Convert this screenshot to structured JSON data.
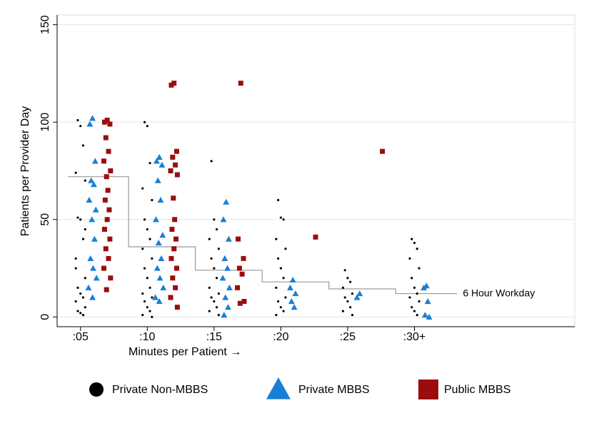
{
  "chart_data": {
    "type": "scatter",
    "xlabel": "Minutes per Patient →",
    "ylabel": "Patients per Provider Day",
    "xlim": [
      0.65,
      8.4
    ],
    "ylim": [
      -5,
      155
    ],
    "xticks": [
      {
        "value": 1,
        "label": ":05"
      },
      {
        "value": 2,
        "label": ":10"
      },
      {
        "value": 3,
        "label": ":15"
      },
      {
        "value": 4,
        "label": ":20"
      },
      {
        "value": 5,
        "label": ":25"
      },
      {
        "value": 6,
        "label": ":30+"
      }
    ],
    "yticks": [
      0,
      50,
      100,
      150
    ],
    "grid": true,
    "series": [
      {
        "name": "Private Non-MBBS",
        "color": "#000000",
        "marker": "circle",
        "x": [
          0.96,
          1.0,
          1.04,
          0.93,
          1.07,
          0.96,
          1.0,
          1.04,
          0.93,
          1.07,
          0.96,
          1.0,
          1.04,
          0.93,
          1.07,
          0.96,
          1.0,
          1.04,
          0.93,
          1.07,
          1.96,
          2.0,
          2.04,
          1.93,
          2.07,
          1.96,
          2.0,
          2.04,
          1.93,
          2.07,
          1.96,
          2.0,
          2.04,
          1.93,
          2.07,
          1.96,
          2.0,
          2.04,
          1.93,
          2.07,
          2.96,
          3.0,
          3.04,
          2.93,
          3.07,
          2.96,
          3.0,
          3.04,
          2.93,
          3.07,
          2.96,
          3.0,
          3.04,
          2.93,
          3.07,
          3.96,
          4.0,
          4.04,
          3.93,
          4.07,
          3.96,
          4.0,
          4.04,
          3.93,
          4.07,
          3.96,
          4.0,
          4.04,
          3.93,
          4.96,
          5.0,
          5.04,
          4.93,
          5.07,
          4.96,
          5.0,
          5.04,
          4.93,
          5.07,
          5.96,
          6.0,
          6.04,
          5.93,
          6.07,
          5.96,
          6.0,
          6.04,
          5.93,
          6.07,
          5.96,
          6.0,
          6.04
        ],
        "values": [
          101,
          98,
          88,
          74,
          70,
          51,
          50,
          40,
          30,
          20,
          15,
          12,
          10,
          8,
          5,
          3,
          2,
          1,
          25,
          45,
          100,
          98,
          79,
          66,
          60,
          50,
          45,
          40,
          35,
          30,
          25,
          20,
          15,
          12,
          10,
          8,
          5,
          3,
          1,
          0,
          80,
          50,
          45,
          40,
          35,
          30,
          25,
          20,
          15,
          12,
          10,
          8,
          5,
          3,
          1,
          60,
          51,
          50,
          40,
          35,
          30,
          25,
          20,
          15,
          10,
          8,
          5,
          3,
          1,
          24,
          20,
          18,
          15,
          12,
          10,
          8,
          5,
          3,
          1,
          40,
          38,
          35,
          30,
          25,
          20,
          15,
          12,
          10,
          8,
          5,
          3,
          1
        ]
      },
      {
        "name": "Private MBBS",
        "color": "#1a7fd4",
        "marker": "triangle",
        "x": [
          1.18,
          1.14,
          1.22,
          1.16,
          1.2,
          1.13,
          1.23,
          1.17,
          1.21,
          1.15,
          1.19,
          1.24,
          1.12,
          1.18,
          2.18,
          2.14,
          2.22,
          2.16,
          2.2,
          2.13,
          2.23,
          2.17,
          2.21,
          2.15,
          2.19,
          2.24,
          2.12,
          2.18,
          3.18,
          3.14,
          3.22,
          3.16,
          3.2,
          3.13,
          3.23,
          3.17,
          3.21,
          3.15,
          4.18,
          4.14,
          4.22,
          4.16,
          4.2,
          5.18,
          5.14,
          6.18,
          6.14,
          6.2,
          6.16,
          6.22
        ],
        "values": [
          102,
          99,
          80,
          70,
          68,
          60,
          55,
          50,
          40,
          30,
          25,
          20,
          15,
          10,
          82,
          80,
          78,
          70,
          60,
          50,
          42,
          38,
          30,
          25,
          20,
          15,
          10,
          8,
          59,
          50,
          40,
          30,
          25,
          20,
          15,
          10,
          5,
          1,
          19,
          15,
          12,
          8,
          5,
          12,
          10,
          16,
          15,
          8,
          1,
          0
        ]
      },
      {
        "name": "Public MBBS",
        "color": "#9b0d0d",
        "marker": "square",
        "x": [
          1.4,
          1.36,
          1.44,
          1.38,
          1.42,
          1.35,
          1.45,
          1.39,
          1.41,
          1.37,
          1.43,
          1.4,
          1.36,
          1.44,
          1.38,
          1.42,
          1.35,
          1.45,
          1.39,
          2.4,
          2.36,
          2.44,
          2.38,
          2.42,
          2.35,
          2.45,
          2.39,
          2.41,
          2.37,
          2.43,
          2.4,
          2.36,
          2.44,
          2.38,
          2.42,
          2.35,
          2.45,
          3.4,
          3.36,
          3.44,
          3.38,
          3.42,
          3.35,
          3.45,
          3.39,
          4.52,
          5.52
        ],
        "values": [
          101,
          100,
          99,
          92,
          85,
          80,
          75,
          72,
          65,
          60,
          55,
          50,
          45,
          40,
          35,
          30,
          25,
          20,
          14,
          120,
          119,
          85,
          82,
          78,
          75,
          73,
          61,
          50,
          45,
          40,
          35,
          30,
          25,
          20,
          15,
          10,
          5,
          120,
          40,
          30,
          25,
          22,
          15,
          8,
          7,
          41,
          85
        ]
      }
    ],
    "reference_line": {
      "name": "6 Hour Workday",
      "color": "#999999",
      "x": [
        0.81,
        1.72,
        1.72,
        2.72,
        2.72,
        3.72,
        3.72,
        4.72,
        4.72,
        5.72,
        5.72,
        6.64
      ],
      "values": [
        72,
        72,
        36,
        36,
        24,
        24,
        18,
        18,
        14.4,
        14.4,
        12,
        12
      ]
    }
  }
}
